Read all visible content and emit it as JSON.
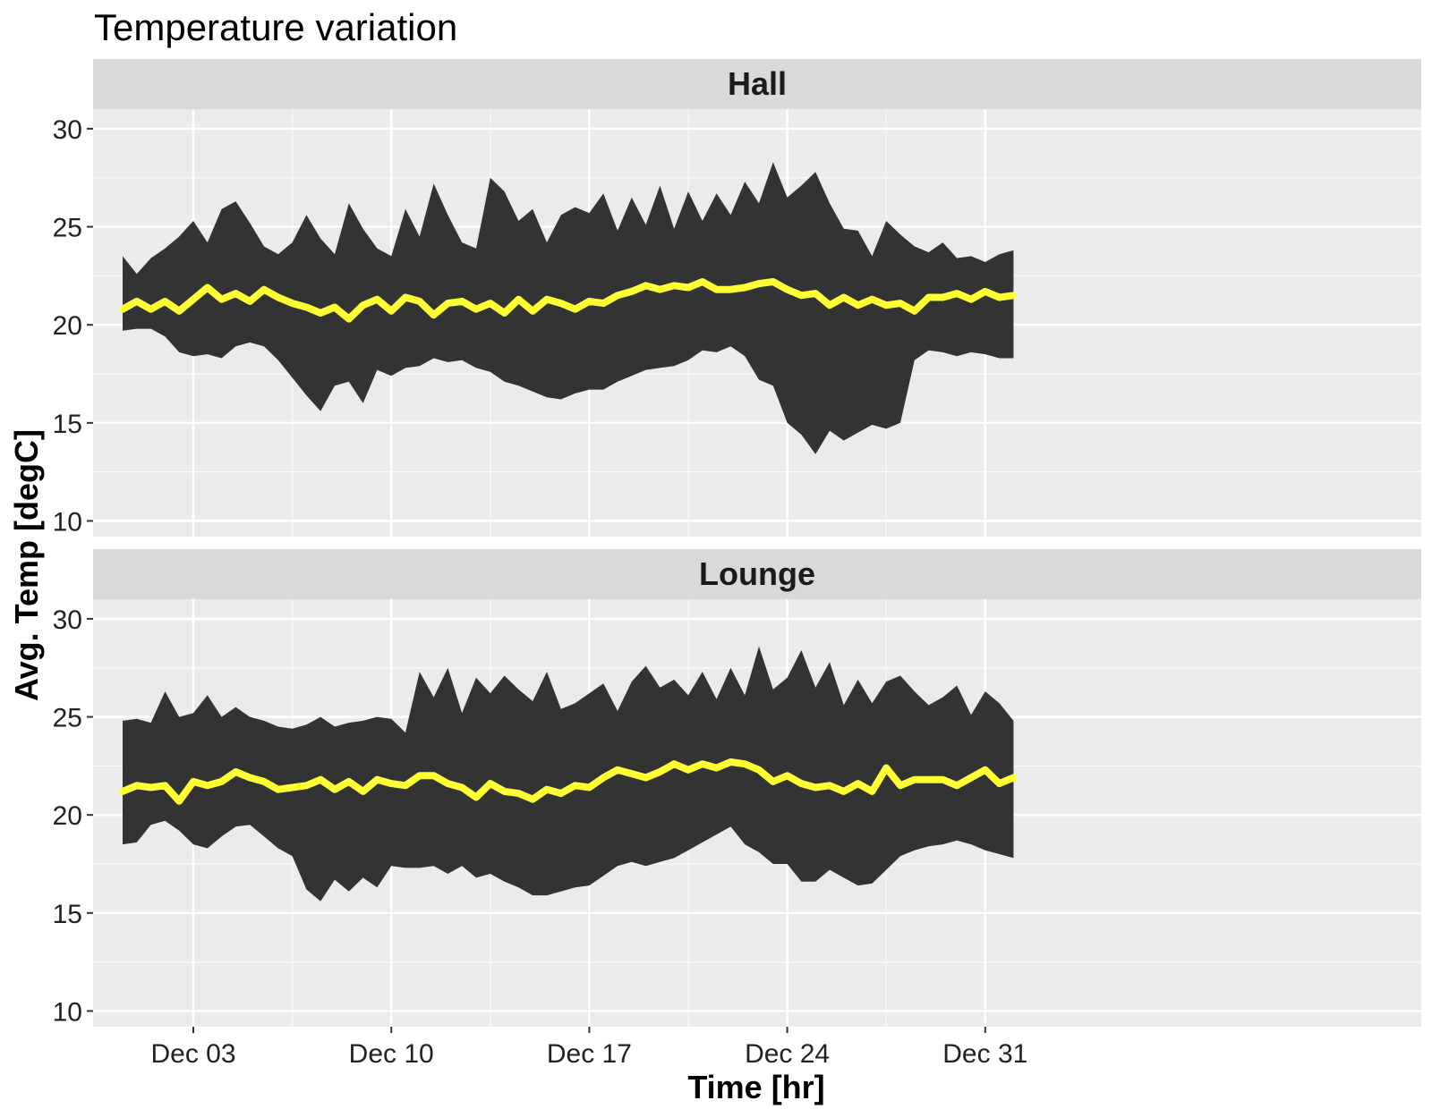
{
  "chart_data": {
    "type": "area",
    "title": "Temperature variation",
    "xlabel": "Time [hr]",
    "ylabel": "Avg. Temp [degC]",
    "x_start": "Dec 02",
    "x_end": "Jan 01",
    "x_ticks": [
      {
        "day": 3,
        "label": "Dec 03"
      },
      {
        "day": 10,
        "label": "Dec 10"
      },
      {
        "day": 17,
        "label": "Dec 17"
      },
      {
        "day": 24,
        "label": "Dec 24"
      },
      {
        "day": 31,
        "label": "Dec 31"
      }
    ],
    "ylim": [
      9.2,
      31.0
    ],
    "y_ticks": [
      10,
      15,
      20,
      25,
      30
    ],
    "grid": true,
    "colors": {
      "panel_bg": "#ebebeb",
      "strip_bg": "#d9d9d9",
      "grid": "#ffffff",
      "band": "#333333",
      "mean_line": "#ffff33"
    },
    "panels": [
      {
        "name": "Hall",
        "series": [
          {
            "name": "max",
            "type": "band-upper",
            "x": [
              0.5,
              1.0,
              1.5,
              2.0,
              2.5,
              3.0,
              3.5,
              4.0,
              4.5,
              5.0,
              5.5,
              6.0,
              6.5,
              7.0,
              7.5,
              8.0,
              8.5,
              9.0,
              9.5,
              10.0,
              10.5,
              11.0,
              11.5,
              12.0,
              12.5,
              13.0,
              13.5,
              14.0,
              14.5,
              15.0,
              15.5,
              16.0,
              16.5,
              17.0,
              17.5,
              18.0,
              18.5,
              19.0,
              19.5,
              20.0,
              20.5,
              21.0,
              21.5,
              22.0,
              22.5,
              23.0,
              23.5,
              24.0,
              24.5,
              25.0,
              25.5,
              26.0,
              26.5,
              27.0,
              27.5,
              28.0,
              28.5,
              29.0,
              29.5,
              30.0,
              30.5,
              31.0,
              31.5,
              32.0
            ],
            "values": [
              23.5,
              22.6,
              23.4,
              23.9,
              24.5,
              25.3,
              24.2,
              25.9,
              26.3,
              25.2,
              24.0,
              23.6,
              24.2,
              25.6,
              24.4,
              23.6,
              26.2,
              24.9,
              23.9,
              23.5,
              25.9,
              24.5,
              27.2,
              25.6,
              24.2,
              23.9,
              27.5,
              26.8,
              25.3,
              25.9,
              24.2,
              25.6,
              26.0,
              25.7,
              26.7,
              24.8,
              26.5,
              25.1,
              27.1,
              24.9,
              26.8,
              25.3,
              26.7,
              25.6,
              27.3,
              26.2,
              28.3,
              26.5,
              27.1,
              27.8,
              26.2,
              24.9,
              24.8,
              23.5,
              25.3,
              24.6,
              24.0,
              23.7,
              24.2,
              23.4,
              23.5,
              23.2,
              23.6,
              23.8
            ]
          },
          {
            "name": "min",
            "type": "band-lower",
            "x": [
              0.5,
              1.0,
              1.5,
              2.0,
              2.5,
              3.0,
              3.5,
              4.0,
              4.5,
              5.0,
              5.5,
              6.0,
              6.5,
              7.0,
              7.5,
              8.0,
              8.5,
              9.0,
              9.5,
              10.0,
              10.5,
              11.0,
              11.5,
              12.0,
              12.5,
              13.0,
              13.5,
              14.0,
              14.5,
              15.0,
              15.5,
              16.0,
              16.5,
              17.0,
              17.5,
              18.0,
              18.5,
              19.0,
              19.5,
              20.0,
              20.5,
              21.0,
              21.5,
              22.0,
              22.5,
              23.0,
              23.5,
              24.0,
              24.5,
              25.0,
              25.5,
              26.0,
              26.5,
              27.0,
              27.5,
              28.0,
              28.5,
              29.0,
              29.5,
              30.0,
              30.5,
              31.0,
              31.5,
              32.0
            ],
            "values": [
              19.7,
              19.8,
              19.8,
              19.4,
              18.6,
              18.4,
              18.5,
              18.3,
              18.9,
              19.1,
              18.9,
              18.2,
              17.3,
              16.4,
              15.6,
              16.9,
              17.1,
              16.0,
              17.7,
              17.4,
              17.8,
              17.9,
              18.3,
              18.1,
              18.2,
              17.8,
              17.6,
              17.1,
              16.9,
              16.6,
              16.3,
              16.2,
              16.5,
              16.7,
              16.7,
              17.1,
              17.4,
              17.7,
              17.8,
              17.9,
              18.2,
              18.7,
              18.6,
              18.9,
              18.4,
              17.2,
              16.9,
              15.0,
              14.4,
              13.4,
              14.6,
              14.1,
              14.5,
              14.9,
              14.7,
              15.0,
              18.2,
              18.7,
              18.6,
              18.4,
              18.6,
              18.5,
              18.3,
              18.3
            ]
          },
          {
            "name": "mean",
            "type": "line",
            "x": [
              0.5,
              1.0,
              1.5,
              2.0,
              2.5,
              3.0,
              3.5,
              4.0,
              4.5,
              5.0,
              5.5,
              6.0,
              6.5,
              7.0,
              7.5,
              8.0,
              8.5,
              9.0,
              9.5,
              10.0,
              10.5,
              11.0,
              11.5,
              12.0,
              12.5,
              13.0,
              13.5,
              14.0,
              14.5,
              15.0,
              15.5,
              16.0,
              16.5,
              17.0,
              17.5,
              18.0,
              18.5,
              19.0,
              19.5,
              20.0,
              20.5,
              21.0,
              21.5,
              22.0,
              22.5,
              23.0,
              23.5,
              24.0,
              24.5,
              25.0,
              25.5,
              26.0,
              26.5,
              27.0,
              27.5,
              28.0,
              28.5,
              29.0,
              29.5,
              30.0,
              30.5,
              31.0,
              31.5,
              32.0
            ],
            "values": [
              20.8,
              21.2,
              20.8,
              21.2,
              20.7,
              21.3,
              21.9,
              21.3,
              21.6,
              21.2,
              21.8,
              21.4,
              21.1,
              20.9,
              20.6,
              20.9,
              20.3,
              21.0,
              21.3,
              20.7,
              21.4,
              21.2,
              20.5,
              21.1,
              21.2,
              20.8,
              21.1,
              20.6,
              21.3,
              20.7,
              21.3,
              21.1,
              20.8,
              21.2,
              21.1,
              21.5,
              21.7,
              22.0,
              21.8,
              22.0,
              21.9,
              22.2,
              21.8,
              21.8,
              21.9,
              22.1,
              22.2,
              21.8,
              21.5,
              21.6,
              21.0,
              21.4,
              21.0,
              21.3,
              21.0,
              21.1,
              20.7,
              21.4,
              21.4,
              21.6,
              21.3,
              21.7,
              21.4,
              21.5
            ]
          }
        ]
      },
      {
        "name": "Lounge",
        "series": [
          {
            "name": "max",
            "type": "band-upper",
            "x": [
              0.5,
              1.0,
              1.5,
              2.0,
              2.5,
              3.0,
              3.5,
              4.0,
              4.5,
              5.0,
              5.5,
              6.0,
              6.5,
              7.0,
              7.5,
              8.0,
              8.5,
              9.0,
              9.5,
              10.0,
              10.5,
              11.0,
              11.5,
              12.0,
              12.5,
              13.0,
              13.5,
              14.0,
              14.5,
              15.0,
              15.5,
              16.0,
              16.5,
              17.0,
              17.5,
              18.0,
              18.5,
              19.0,
              19.5,
              20.0,
              20.5,
              21.0,
              21.5,
              22.0,
              22.5,
              23.0,
              23.5,
              24.0,
              24.5,
              25.0,
              25.5,
              26.0,
              26.5,
              27.0,
              27.5,
              28.0,
              28.5,
              29.0,
              29.5,
              30.0,
              30.5,
              31.0,
              31.5,
              32.0
            ],
            "values": [
              24.8,
              24.9,
              24.7,
              26.3,
              25.0,
              25.2,
              26.1,
              25.0,
              25.5,
              25.0,
              24.8,
              24.5,
              24.4,
              24.6,
              25.0,
              24.5,
              24.7,
              24.8,
              25.0,
              24.9,
              24.2,
              27.3,
              26.0,
              27.5,
              25.2,
              27.0,
              26.2,
              27.1,
              26.4,
              25.8,
              27.3,
              25.4,
              25.7,
              26.2,
              26.7,
              25.3,
              26.8,
              27.6,
              26.5,
              26.9,
              26.1,
              27.3,
              25.9,
              27.5,
              26.1,
              28.6,
              26.4,
              27.0,
              28.4,
              26.5,
              27.8,
              25.6,
              26.9,
              25.7,
              26.8,
              27.1,
              26.3,
              25.6,
              26.0,
              26.6,
              25.1,
              26.3,
              25.7,
              24.8
            ]
          },
          {
            "name": "min",
            "type": "band-lower",
            "x": [
              0.5,
              1.0,
              1.5,
              2.0,
              2.5,
              3.0,
              3.5,
              4.0,
              4.5,
              5.0,
              5.5,
              6.0,
              6.5,
              7.0,
              7.5,
              8.0,
              8.5,
              9.0,
              9.5,
              10.0,
              10.5,
              11.0,
              11.5,
              12.0,
              12.5,
              13.0,
              13.5,
              14.0,
              14.5,
              15.0,
              15.5,
              16.0,
              16.5,
              17.0,
              17.5,
              18.0,
              18.5,
              19.0,
              19.5,
              20.0,
              20.5,
              21.0,
              21.5,
              22.0,
              22.5,
              23.0,
              23.5,
              24.0,
              24.5,
              25.0,
              25.5,
              26.0,
              26.5,
              27.0,
              27.5,
              28.0,
              28.5,
              29.0,
              29.5,
              30.0,
              30.5,
              31.0,
              31.5,
              32.0
            ],
            "values": [
              18.5,
              18.6,
              19.5,
              19.7,
              19.2,
              18.5,
              18.3,
              18.9,
              19.4,
              19.5,
              18.9,
              18.3,
              17.9,
              16.2,
              15.6,
              16.7,
              16.1,
              16.8,
              16.3,
              17.4,
              17.3,
              17.3,
              17.4,
              17.0,
              17.4,
              16.8,
              17.0,
              16.6,
              16.3,
              15.9,
              15.9,
              16.1,
              16.3,
              16.4,
              16.9,
              17.4,
              17.6,
              17.4,
              17.6,
              17.8,
              18.2,
              18.6,
              19.0,
              19.4,
              18.5,
              18.1,
              17.5,
              17.5,
              16.6,
              16.6,
              17.2,
              16.8,
              16.4,
              16.5,
              17.2,
              17.9,
              18.2,
              18.4,
              18.5,
              18.7,
              18.5,
              18.2,
              18.0,
              17.8
            ]
          },
          {
            "name": "mean",
            "type": "line",
            "x": [
              0.5,
              1.0,
              1.5,
              2.0,
              2.5,
              3.0,
              3.5,
              4.0,
              4.5,
              5.0,
              5.5,
              6.0,
              6.5,
              7.0,
              7.5,
              8.0,
              8.5,
              9.0,
              9.5,
              10.0,
              10.5,
              11.0,
              11.5,
              12.0,
              12.5,
              13.0,
              13.5,
              14.0,
              14.5,
              15.0,
              15.5,
              16.0,
              16.5,
              17.0,
              17.5,
              18.0,
              18.5,
              19.0,
              19.5,
              20.0,
              20.5,
              21.0,
              21.5,
              22.0,
              22.5,
              23.0,
              23.5,
              24.0,
              24.5,
              25.0,
              25.5,
              26.0,
              26.5,
              27.0,
              27.5,
              28.0,
              28.5,
              29.0,
              29.5,
              30.0,
              30.5,
              31.0,
              31.5,
              32.0
            ],
            "values": [
              21.2,
              21.5,
              21.4,
              21.5,
              20.7,
              21.7,
              21.5,
              21.7,
              22.2,
              21.9,
              21.7,
              21.3,
              21.4,
              21.5,
              21.8,
              21.3,
              21.7,
              21.2,
              21.8,
              21.6,
              21.5,
              22.0,
              22.0,
              21.6,
              21.4,
              20.9,
              21.6,
              21.2,
              21.1,
              20.8,
              21.3,
              21.1,
              21.5,
              21.4,
              21.9,
              22.3,
              22.1,
              21.9,
              22.2,
              22.6,
              22.3,
              22.6,
              22.4,
              22.7,
              22.6,
              22.3,
              21.7,
              22.0,
              21.6,
              21.4,
              21.5,
              21.2,
              21.6,
              21.2,
              22.4,
              21.5,
              21.8,
              21.8,
              21.8,
              21.5,
              21.9,
              22.3,
              21.6,
              21.9
            ]
          }
        ]
      }
    ]
  }
}
